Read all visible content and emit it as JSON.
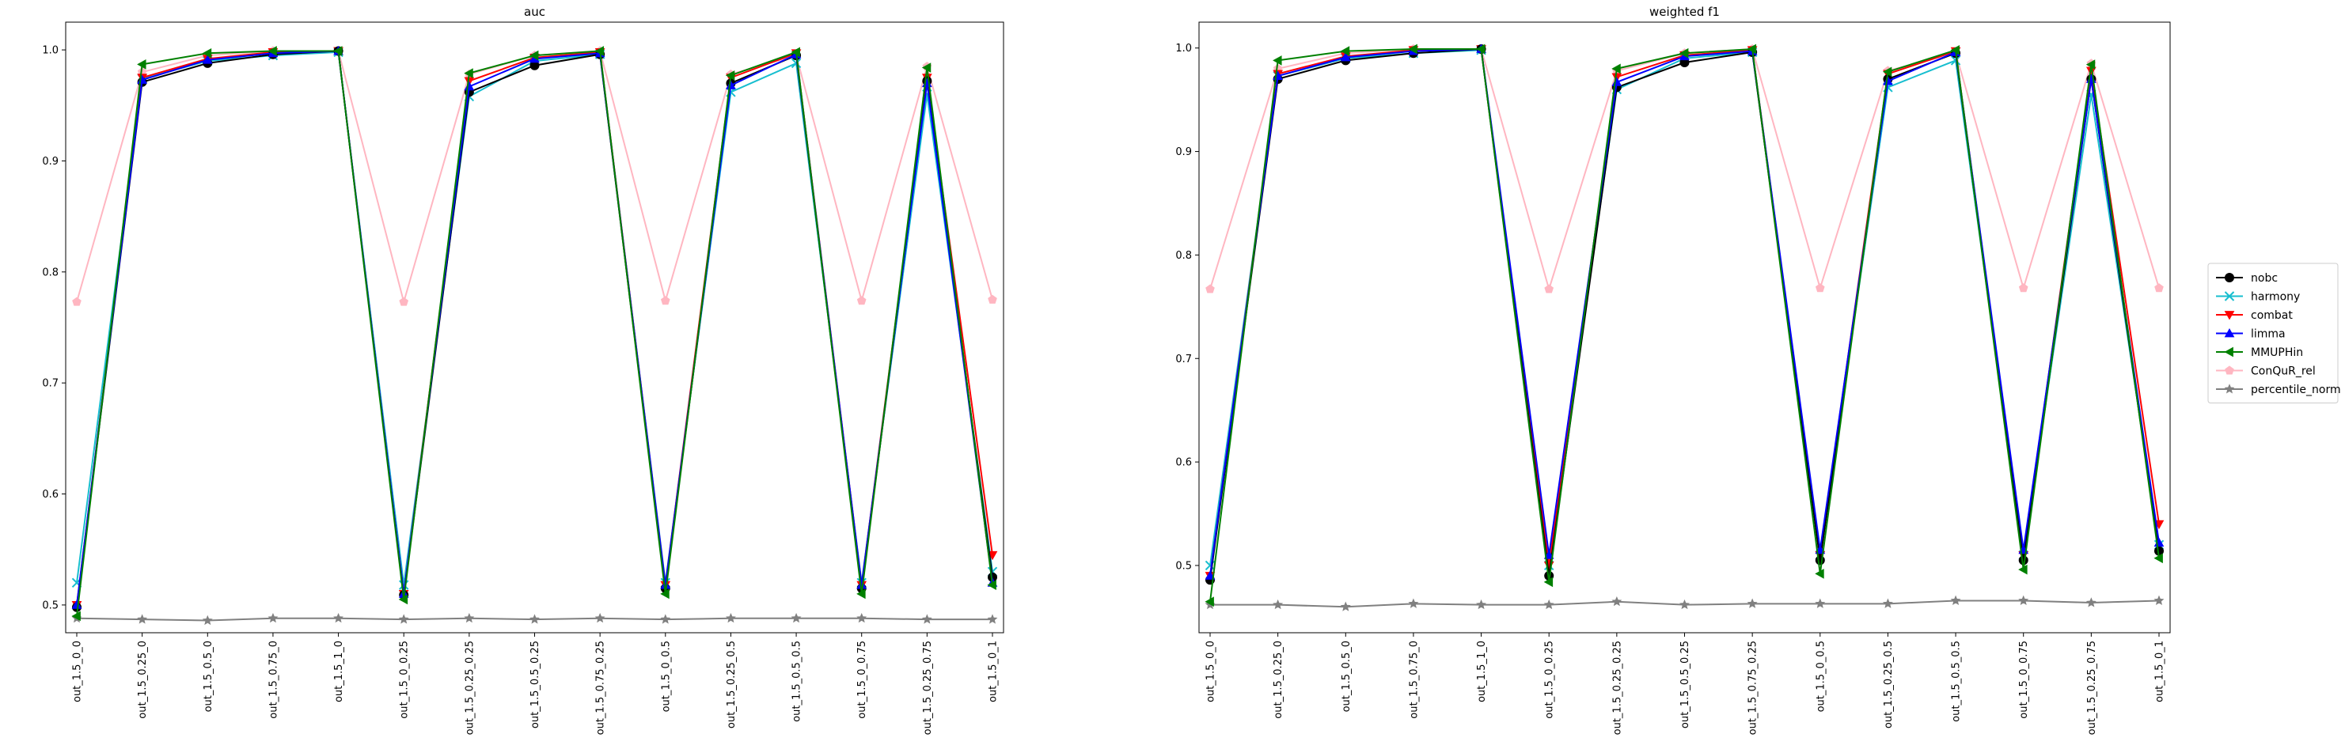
{
  "chart_data": {
    "type": "line",
    "categories": [
      "out_1.5_0_0",
      "out_1.5_0.25_0",
      "out_1.5_0.5_0",
      "out_1.5_0.75_0",
      "out_1.5_1_0",
      "out_1.5_0_0.25",
      "out_1.5_0.25_0.25",
      "out_1.5_0.5_0.25",
      "out_1.5_0.75_0.25",
      "out_1.5_0_0.5",
      "out_1.5_0.25_0.5",
      "out_1.5_0.5_0.5",
      "out_1.5_0_0.75",
      "out_1.5_0.25_0.75",
      "out_1.5_0_1"
    ],
    "legend": {
      "placement": "right",
      "entries": [
        {
          "name": "nobc",
          "color": "#000000",
          "marker": "circle"
        },
        {
          "name": "harmony",
          "color": "#17becf",
          "marker": "x"
        },
        {
          "name": "combat",
          "color": "#ff0000",
          "marker": "triangle-down"
        },
        {
          "name": "limma",
          "color": "#0000ff",
          "marker": "triangle-up"
        },
        {
          "name": "MMUPHin",
          "color": "#008000",
          "marker": "triangle-left"
        },
        {
          "name": "ConQuR_rel",
          "color": "#ffb6c1",
          "marker": "pentagon"
        },
        {
          "name": "percentile_norm",
          "color": "#808080",
          "marker": "star"
        }
      ]
    },
    "panels": [
      {
        "title": "auc",
        "ylim": [
          0.475,
          1.025
        ],
        "yticks": [
          "0.5",
          "0.6",
          "0.7",
          "0.8",
          "0.9",
          "1.0"
        ],
        "series": [
          {
            "name": "nobc",
            "values": [
              0.498,
              0.971,
              0.988,
              0.996,
              0.999,
              0.509,
              0.962,
              0.986,
              0.996,
              0.515,
              0.97,
              0.995,
              0.515,
              0.972,
              0.525
            ]
          },
          {
            "name": "harmony",
            "values": [
              0.52,
              0.974,
              0.99,
              0.995,
              0.998,
              0.518,
              0.958,
              0.99,
              0.996,
              0.52,
              0.962,
              0.988,
              0.52,
              0.96,
              0.53
            ]
          },
          {
            "name": "combat",
            "values": [
              0.5,
              0.975,
              0.992,
              0.998,
              0.999,
              0.51,
              0.972,
              0.993,
              0.998,
              0.518,
              0.975,
              0.997,
              0.518,
              0.975,
              0.545
            ]
          },
          {
            "name": "limma",
            "values": [
              0.5,
              0.973,
              0.991,
              0.997,
              0.999,
              0.51,
              0.967,
              0.992,
              0.997,
              0.518,
              0.968,
              0.996,
              0.518,
              0.97,
              0.52
            ]
          },
          {
            "name": "MMUPHin",
            "values": [
              0.49,
              0.987,
              0.997,
              0.999,
              0.999,
              0.505,
              0.979,
              0.995,
              0.999,
              0.51,
              0.977,
              0.998,
              0.51,
              0.984,
              0.518
            ]
          },
          {
            "name": "ConQuR_rel",
            "values": [
              0.773,
              0.98,
              0.995,
              0.999,
              0.999,
              0.773,
              0.978,
              0.995,
              0.999,
              0.774,
              0.978,
              0.995,
              0.774,
              0.985,
              0.775
            ]
          },
          {
            "name": "percentile_norm",
            "values": [
              0.488,
              0.487,
              0.486,
              0.488,
              0.488,
              0.487,
              0.488,
              0.487,
              0.488,
              0.487,
              0.488,
              0.488,
              0.488,
              0.487,
              0.487
            ]
          }
        ]
      },
      {
        "title": "weighted f1",
        "ylim": [
          0.435,
          1.025
        ],
        "yticks": [
          "0.5",
          "0.6",
          "0.7",
          "0.8",
          "0.9",
          "1.0"
        ],
        "series": [
          {
            "name": "nobc",
            "values": [
              0.486,
              0.97,
              0.988,
              0.995,
              0.999,
              0.49,
              0.962,
              0.986,
              0.996,
              0.505,
              0.97,
              0.995,
              0.505,
              0.97,
              0.514
            ]
          },
          {
            "name": "harmony",
            "values": [
              0.5,
              0.973,
              0.99,
              0.995,
              0.998,
              0.5,
              0.96,
              0.99,
              0.996,
              0.51,
              0.962,
              0.988,
              0.51,
              0.955,
              0.52
            ]
          },
          {
            "name": "combat",
            "values": [
              0.49,
              0.975,
              0.992,
              0.998,
              0.999,
              0.5,
              0.972,
              0.993,
              0.998,
              0.51,
              0.975,
              0.997,
              0.51,
              0.978,
              0.54
            ]
          },
          {
            "name": "limma",
            "values": [
              0.49,
              0.973,
              0.991,
              0.997,
              0.999,
              0.51,
              0.967,
              0.992,
              0.997,
              0.515,
              0.968,
              0.996,
              0.515,
              0.97,
              0.522
            ]
          },
          {
            "name": "MMUPHin",
            "values": [
              0.465,
              0.988,
              0.997,
              0.999,
              0.999,
              0.484,
              0.98,
              0.995,
              0.999,
              0.492,
              0.977,
              0.998,
              0.496,
              0.984,
              0.507
            ]
          },
          {
            "name": "ConQuR_rel",
            "values": [
              0.767,
              0.98,
              0.995,
              0.999,
              0.999,
              0.767,
              0.978,
              0.995,
              0.999,
              0.768,
              0.978,
              0.995,
              0.768,
              0.985,
              0.768
            ]
          },
          {
            "name": "percentile_norm",
            "values": [
              0.462,
              0.462,
              0.46,
              0.463,
              0.462,
              0.462,
              0.465,
              0.462,
              0.463,
              0.463,
              0.463,
              0.466,
              0.466,
              0.464,
              0.466
            ]
          }
        ]
      }
    ]
  }
}
